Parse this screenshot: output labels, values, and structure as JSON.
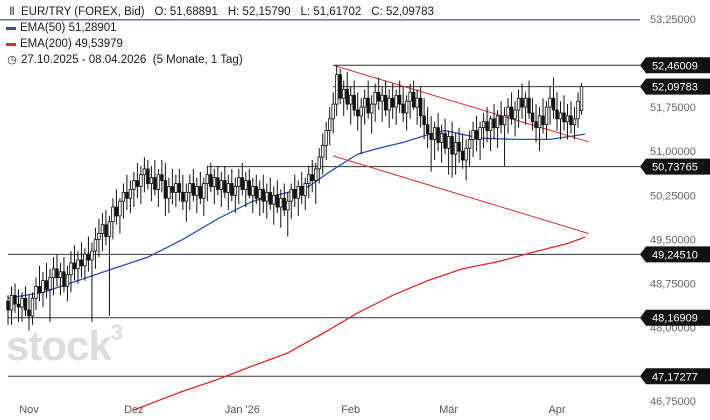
{
  "legend": {
    "instrument": "EUR/TRY (FOREX, Bid)",
    "o": "O: 51,68891",
    "h": "H: 52,15790",
    "l": "L: 51,61702",
    "c": "C: 52,09783",
    "ema50": "EMA(50)",
    "ema50_val": "51,28901",
    "ema200": "EMA(200)",
    "ema200_val": "49,53979",
    "range": "27.10.2025 - 08.04.2026",
    "range_info": "(5 Monate, 1 Tag)",
    "chart_icon": "candlestick-icon",
    "clock_icon": "clock-icon"
  },
  "watermark": "stock",
  "watermark_sup": "3",
  "colors": {
    "ema50": "#2b4fb4",
    "ema200": "#e32626",
    "trend": "#e32626",
    "candle": "#111111",
    "label_bg": "#111111",
    "hline": "#333333"
  },
  "chart_data": {
    "type": "candlestick",
    "ylim": [
      46.6,
      53.4
    ],
    "y_ticks": [
      "53,25000",
      "52,50000",
      "51,75000",
      "51,00000",
      "50,25000",
      "49,50000",
      "48,75000",
      "48,00000",
      "46,75000"
    ],
    "x_ticks": [
      "Nov",
      "Dez",
      "Jan '26",
      "Feb",
      "Mär",
      "Apr"
    ],
    "x_tick_days": [
      6,
      36,
      67,
      98,
      126,
      157
    ],
    "x_range_days": [
      0,
      165
    ],
    "horizontal_levels": [
      52.46009,
      52.09783,
      50.73765,
      49.2451,
      48.16909,
      47.17277
    ],
    "level_labels": [
      "52,46009",
      "52,09783",
      "50,73765",
      "49,24510",
      "48,16909",
      "47,17277"
    ],
    "level_line_spans": [
      [
        93,
        167
      ],
      [
        93,
        167
      ],
      [
        57,
        167
      ],
      [
        0,
        167
      ],
      [
        0,
        167
      ],
      [
        0,
        167
      ]
    ],
    "channel_upper": [
      [
        93,
        52.46
      ],
      [
        166,
        51.16
      ]
    ],
    "channel_lower": [
      [
        93,
        50.92
      ],
      [
        166,
        49.6
      ]
    ],
    "top_line_value": 53.25,
    "ema50": [
      [
        0,
        48.5
      ],
      [
        10,
        48.6
      ],
      [
        20,
        48.8
      ],
      [
        30,
        49.0
      ],
      [
        40,
        49.2
      ],
      [
        50,
        49.5
      ],
      [
        60,
        49.85
      ],
      [
        70,
        50.15
      ],
      [
        80,
        50.3
      ],
      [
        86,
        50.4
      ],
      [
        92,
        50.65
      ],
      [
        100,
        50.95
      ],
      [
        106,
        51.05
      ],
      [
        113,
        51.15
      ],
      [
        120,
        51.28
      ],
      [
        125,
        51.35
      ],
      [
        135,
        51.22
      ],
      [
        145,
        51.2
      ],
      [
        155,
        51.2
      ],
      [
        165,
        51.29
      ]
    ],
    "ema200": [
      [
        36,
        46.6
      ],
      [
        50,
        46.92
      ],
      [
        60,
        47.12
      ],
      [
        70,
        47.35
      ],
      [
        80,
        47.57
      ],
      [
        90,
        47.9
      ],
      [
        100,
        48.25
      ],
      [
        110,
        48.55
      ],
      [
        120,
        48.8
      ],
      [
        130,
        49.0
      ],
      [
        140,
        49.12
      ],
      [
        150,
        49.28
      ],
      [
        160,
        49.43
      ],
      [
        165,
        49.54
      ]
    ],
    "candles": [
      [
        0,
        48.45,
        48.55,
        48.05,
        48.3
      ],
      [
        1,
        48.3,
        48.7,
        48.05,
        48.55
      ],
      [
        2,
        48.55,
        48.75,
        48.25,
        48.4
      ],
      [
        3,
        48.4,
        48.65,
        48.1,
        48.35
      ],
      [
        4,
        48.35,
        48.6,
        48.1,
        48.5
      ],
      [
        5,
        48.5,
        48.7,
        48.2,
        48.3
      ],
      [
        6,
        48.3,
        48.55,
        47.95,
        48.2
      ],
      [
        7,
        48.2,
        48.6,
        48.05,
        48.5
      ],
      [
        8,
        48.5,
        48.85,
        48.3,
        48.7
      ],
      [
        9,
        48.7,
        49.05,
        48.45,
        48.6
      ],
      [
        10,
        48.6,
        48.95,
        48.35,
        48.8
      ],
      [
        11,
        48.8,
        49.1,
        48.5,
        48.65
      ],
      [
        12,
        48.65,
        49.0,
        48.1,
        48.85
      ],
      [
        13,
        48.85,
        49.2,
        48.55,
        49.0
      ],
      [
        14,
        49.0,
        49.25,
        48.7,
        48.85
      ],
      [
        15,
        48.85,
        49.1,
        48.55,
        48.95
      ],
      [
        16,
        48.95,
        49.2,
        48.6,
        48.7
      ],
      [
        17,
        48.7,
        49.05,
        48.45,
        48.9
      ],
      [
        18,
        48.9,
        49.3,
        48.6,
        49.1
      ],
      [
        19,
        49.1,
        49.4,
        48.8,
        49.0
      ],
      [
        20,
        49.0,
        49.3,
        48.75,
        49.15
      ],
      [
        21,
        49.15,
        49.45,
        48.85,
        49.05
      ],
      [
        22,
        49.05,
        49.35,
        48.8,
        49.25
      ],
      [
        23,
        49.25,
        49.55,
        48.95,
        49.15
      ],
      [
        24,
        49.15,
        49.45,
        48.1,
        49.3
      ],
      [
        25,
        49.3,
        49.7,
        49.0,
        49.5
      ],
      [
        26,
        49.5,
        49.85,
        49.2,
        49.6
      ],
      [
        27,
        49.6,
        49.95,
        49.3,
        49.75
      ],
      [
        28,
        49.75,
        50.0,
        49.4,
        49.55
      ],
      [
        29,
        49.55,
        49.9,
        48.2,
        49.8
      ],
      [
        30,
        49.8,
        50.2,
        49.5,
        50.05
      ],
      [
        31,
        50.05,
        50.35,
        49.75,
        49.9
      ],
      [
        32,
        49.9,
        50.2,
        49.6,
        50.15
      ],
      [
        33,
        50.15,
        50.45,
        49.85,
        50.3
      ],
      [
        34,
        50.3,
        50.6,
        50.0,
        50.2
      ],
      [
        35,
        50.2,
        50.5,
        49.95,
        50.35
      ],
      [
        36,
        50.35,
        50.65,
        50.05,
        50.5
      ],
      [
        37,
        50.5,
        50.8,
        50.2,
        50.4
      ],
      [
        38,
        50.4,
        50.75,
        50.1,
        50.6
      ],
      [
        39,
        50.6,
        50.9,
        50.3,
        50.7
      ],
      [
        40,
        50.7,
        50.85,
        50.35,
        50.45
      ],
      [
        41,
        50.45,
        50.75,
        50.15,
        50.55
      ],
      [
        42,
        50.55,
        50.85,
        50.25,
        50.35
      ],
      [
        43,
        50.35,
        50.7,
        50.05,
        50.6
      ],
      [
        44,
        50.6,
        50.85,
        50.3,
        50.5
      ],
      [
        45,
        50.5,
        50.8,
        49.9,
        50.2
      ],
      [
        46,
        50.2,
        50.55,
        49.95,
        50.4
      ],
      [
        47,
        50.4,
        50.7,
        50.1,
        50.3
      ],
      [
        48,
        50.3,
        50.6,
        50.05,
        50.45
      ],
      [
        49,
        50.45,
        50.7,
        50.15,
        50.3
      ],
      [
        50,
        50.3,
        50.6,
        50.0,
        50.15
      ],
      [
        51,
        50.15,
        50.45,
        49.8,
        50.3
      ],
      [
        52,
        50.3,
        50.6,
        50.0,
        50.45
      ],
      [
        53,
        50.45,
        50.7,
        50.15,
        50.25
      ],
      [
        54,
        50.25,
        50.55,
        49.95,
        50.4
      ],
      [
        55,
        50.4,
        50.65,
        50.1,
        50.2
      ],
      [
        56,
        50.2,
        50.55,
        49.9,
        50.45
      ],
      [
        57,
        50.45,
        50.75,
        50.15,
        50.6
      ],
      [
        58,
        50.6,
        50.8,
        50.3,
        50.4
      ],
      [
        59,
        50.4,
        50.7,
        50.1,
        50.55
      ],
      [
        60,
        50.55,
        50.75,
        50.25,
        50.35
      ],
      [
        61,
        50.35,
        50.65,
        50.05,
        50.5
      ],
      [
        62,
        50.5,
        50.75,
        50.2,
        50.3
      ],
      [
        63,
        50.3,
        50.6,
        50.0,
        50.45
      ],
      [
        64,
        50.45,
        50.7,
        50.15,
        50.25
      ],
      [
        65,
        50.25,
        50.55,
        49.95,
        50.4
      ],
      [
        66,
        50.4,
        50.7,
        50.1,
        50.55
      ],
      [
        67,
        50.55,
        50.8,
        50.25,
        50.35
      ],
      [
        68,
        50.35,
        50.65,
        50.05,
        50.5
      ],
      [
        69,
        50.5,
        50.7,
        50.2,
        50.25
      ],
      [
        70,
        50.25,
        50.55,
        49.95,
        50.4
      ],
      [
        71,
        50.4,
        50.6,
        50.1,
        50.2
      ],
      [
        72,
        50.2,
        50.5,
        49.9,
        50.35
      ],
      [
        73,
        50.35,
        50.6,
        49.95,
        50.15
      ],
      [
        74,
        50.15,
        50.45,
        49.85,
        50.3
      ],
      [
        75,
        50.3,
        50.55,
        50.0,
        50.1
      ],
      [
        76,
        50.1,
        50.4,
        49.75,
        50.25
      ],
      [
        77,
        50.25,
        50.5,
        49.95,
        50.05
      ],
      [
        78,
        50.05,
        50.35,
        49.7,
        50.2
      ],
      [
        79,
        50.2,
        50.45,
        49.9,
        50.0
      ],
      [
        80,
        50.0,
        50.3,
        49.55,
        50.15
      ],
      [
        81,
        50.15,
        50.45,
        49.85,
        50.35
      ],
      [
        82,
        50.35,
        50.6,
        50.05,
        50.2
      ],
      [
        83,
        50.2,
        50.5,
        49.9,
        50.4
      ],
      [
        84,
        50.4,
        50.65,
        50.1,
        50.25
      ],
      [
        85,
        50.25,
        50.55,
        50.0,
        50.45
      ],
      [
        86,
        50.45,
        50.75,
        50.2,
        50.6
      ],
      [
        87,
        50.6,
        50.85,
        50.3,
        50.5
      ],
      [
        88,
        50.5,
        50.8,
        50.1,
        50.7
      ],
      [
        89,
        50.7,
        51.05,
        50.45,
        50.9
      ],
      [
        90,
        50.9,
        51.3,
        50.6,
        51.1
      ],
      [
        91,
        51.1,
        51.5,
        50.85,
        51.35
      ],
      [
        92,
        51.35,
        51.75,
        51.1,
        51.55
      ],
      [
        93,
        51.55,
        52.0,
        51.3,
        51.8
      ],
      [
        94,
        51.8,
        52.46,
        51.6,
        52.3
      ],
      [
        95,
        52.3,
        52.4,
        51.8,
        51.9
      ],
      [
        96,
        51.9,
        52.2,
        51.6,
        52.05
      ],
      [
        97,
        52.05,
        52.35,
        51.7,
        51.8
      ],
      [
        98,
        51.8,
        52.1,
        51.45,
        51.95
      ],
      [
        99,
        51.95,
        52.2,
        51.6,
        51.7
      ],
      [
        100,
        51.7,
        52.0,
        51.35,
        51.6
      ],
      [
        101,
        51.6,
        51.9,
        50.95,
        51.75
      ],
      [
        102,
        51.75,
        52.05,
        51.45,
        51.9
      ],
      [
        103,
        51.9,
        52.2,
        51.55,
        51.65
      ],
      [
        104,
        51.65,
        51.95,
        51.3,
        51.8
      ],
      [
        105,
        51.8,
        52.15,
        51.5,
        52.0
      ],
      [
        106,
        52.0,
        52.25,
        51.7,
        51.85
      ],
      [
        107,
        51.85,
        52.1,
        51.5,
        51.95
      ],
      [
        108,
        51.95,
        52.2,
        51.6,
        51.7
      ],
      [
        109,
        51.7,
        52.05,
        51.4,
        51.9
      ],
      [
        110,
        51.9,
        52.15,
        51.55,
        51.75
      ],
      [
        111,
        51.75,
        52.05,
        51.45,
        51.95
      ],
      [
        112,
        51.95,
        52.2,
        51.65,
        51.8
      ],
      [
        113,
        51.8,
        52.1,
        51.5,
        51.65
      ],
      [
        114,
        51.65,
        51.95,
        51.35,
        51.85
      ],
      [
        115,
        51.85,
        52.15,
        51.55,
        52.0
      ],
      [
        116,
        52.0,
        52.2,
        51.7,
        51.75
      ],
      [
        117,
        51.75,
        52.05,
        51.45,
        51.9
      ],
      [
        118,
        51.9,
        52.1,
        51.4,
        51.6
      ],
      [
        119,
        51.6,
        51.9,
        51.2,
        51.45
      ],
      [
        120,
        51.45,
        51.75,
        51.05,
        51.3
      ],
      [
        121,
        51.3,
        51.6,
        50.65,
        51.2
      ],
      [
        122,
        51.2,
        51.5,
        50.85,
        51.4
      ],
      [
        123,
        51.4,
        51.65,
        51.0,
        51.15
      ],
      [
        124,
        51.15,
        51.45,
        50.8,
        51.3
      ],
      [
        125,
        51.3,
        51.55,
        50.95,
        51.05
      ],
      [
        126,
        51.05,
        51.35,
        50.6,
        51.25
      ],
      [
        127,
        51.25,
        51.5,
        50.55,
        50.95
      ],
      [
        128,
        50.95,
        51.3,
        50.6,
        51.15
      ],
      [
        129,
        51.15,
        51.4,
        50.8,
        51.0
      ],
      [
        130,
        51.0,
        51.3,
        50.7,
        50.85
      ],
      [
        131,
        50.85,
        51.2,
        50.5,
        51.05
      ],
      [
        132,
        51.05,
        51.35,
        50.75,
        51.2
      ],
      [
        133,
        51.2,
        51.5,
        50.9,
        51.35
      ],
      [
        134,
        51.35,
        51.6,
        51.0,
        51.2
      ],
      [
        135,
        51.2,
        51.5,
        50.85,
        51.4
      ],
      [
        136,
        51.4,
        51.65,
        51.05,
        51.5
      ],
      [
        137,
        51.5,
        51.75,
        51.15,
        51.35
      ],
      [
        138,
        51.35,
        51.6,
        51.0,
        51.55
      ],
      [
        139,
        51.55,
        51.8,
        51.2,
        51.4
      ],
      [
        140,
        51.4,
        51.7,
        51.05,
        51.6
      ],
      [
        141,
        51.6,
        51.85,
        51.3,
        51.45
      ],
      [
        142,
        51.45,
        51.75,
        50.75,
        51.6
      ],
      [
        143,
        51.6,
        51.9,
        51.3,
        51.75
      ],
      [
        144,
        51.75,
        52.0,
        51.45,
        51.55
      ],
      [
        145,
        51.55,
        51.85,
        51.25,
        51.7
      ],
      [
        146,
        51.7,
        52.05,
        51.4,
        51.9
      ],
      [
        147,
        51.9,
        52.15,
        51.55,
        51.75
      ],
      [
        148,
        51.75,
        52.0,
        51.45,
        51.9
      ],
      [
        149,
        51.9,
        52.2,
        51.55,
        51.65
      ],
      [
        150,
        51.65,
        51.9,
        51.35,
        51.5
      ],
      [
        151,
        51.5,
        51.8,
        51.15,
        51.4
      ],
      [
        152,
        51.4,
        51.75,
        51.0,
        51.6
      ],
      [
        153,
        51.6,
        51.9,
        51.3,
        51.45
      ],
      [
        154,
        51.45,
        51.85,
        51.2,
        51.75
      ],
      [
        155,
        51.75,
        52.1,
        51.45,
        51.9
      ],
      [
        156,
        51.9,
        52.25,
        51.55,
        51.7
      ],
      [
        157,
        51.7,
        52.0,
        51.35,
        51.55
      ],
      [
        158,
        51.55,
        51.85,
        51.2,
        51.65
      ],
      [
        159,
        51.65,
        51.95,
        51.35,
        51.5
      ],
      [
        160,
        51.5,
        51.8,
        51.2,
        51.6
      ],
      [
        161,
        51.6,
        51.85,
        51.3,
        51.45
      ],
      [
        162,
        51.45,
        51.75,
        51.2,
        51.55
      ],
      [
        163,
        51.55,
        52.0,
        51.4,
        51.85
      ],
      [
        164,
        51.69,
        52.16,
        51.62,
        52.1
      ]
    ]
  }
}
